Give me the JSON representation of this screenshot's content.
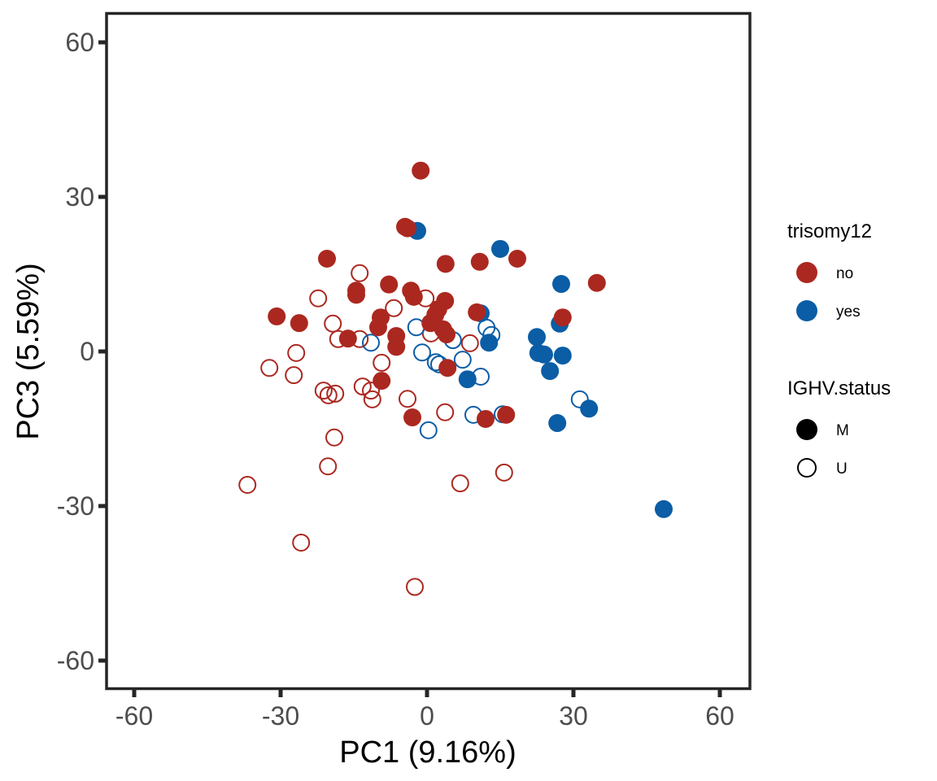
{
  "chart_data": {
    "type": "scatter",
    "title": "",
    "xlabel": "PC1 (9.16%)",
    "ylabel": "PC3 (5.59%)",
    "xlim": [
      -66,
      66
    ],
    "ylim": [
      -66,
      66
    ],
    "xticks": [
      -60,
      -30,
      0,
      30,
      60
    ],
    "yticks": [
      -60,
      -30,
      0,
      30,
      60
    ],
    "xtick_labels": [
      "-60",
      "-30",
      "0",
      "30",
      "60"
    ],
    "ytick_labels": [
      "-60",
      "-30",
      "0",
      "30",
      "60"
    ],
    "grid": false,
    "legend_placement": "right",
    "colors": {
      "no": "#ab2820",
      "yes": "#0b5da5",
      "axis": "#262626",
      "tick_text": "#4d4d4d"
    },
    "legends": [
      {
        "title": "trisomy12",
        "entries": [
          {
            "label": "no",
            "color": "#ab2820",
            "shape": "filled-circle"
          },
          {
            "label": "yes",
            "color": "#0b5da5",
            "shape": "filled-circle"
          }
        ]
      },
      {
        "title": "IGHV.status",
        "entries": [
          {
            "label": "M",
            "color": "#000000",
            "shape": "filled-circle"
          },
          {
            "label": "U",
            "color": "#000000",
            "shape": "open-circle"
          }
        ]
      }
    ],
    "series": [
      {
        "name": "trisomy12=no, IGHV.status=U",
        "trisomy12": "no",
        "IGHV.status": "U",
        "points": [
          [
            -13.8,
            15.2
          ],
          [
            -22.3,
            10.3
          ],
          [
            -6.8,
            8.4
          ],
          [
            -0.3,
            10.3
          ],
          [
            -19.3,
            5.4
          ],
          [
            -18.2,
            2.4
          ],
          [
            -13.8,
            2.4
          ],
          [
            -26.8,
            -0.3
          ],
          [
            -32.3,
            -3.2
          ],
          [
            -27.3,
            -4.6
          ],
          [
            -9.3,
            -2.2
          ],
          [
            -21.2,
            -7.6
          ],
          [
            -20.2,
            -8.5
          ],
          [
            -18.8,
            -8.2
          ],
          [
            -13.2,
            -6.8
          ],
          [
            -11.5,
            -7.6
          ],
          [
            -11.2,
            -9.3
          ],
          [
            -4.0,
            -9.2
          ],
          [
            3.7,
            -11.8
          ],
          [
            8.8,
            1.6
          ],
          [
            0.8,
            3.5
          ],
          [
            -19.0,
            -16.7
          ],
          [
            -20.3,
            -22.3
          ],
          [
            -36.8,
            -25.9
          ],
          [
            6.8,
            -25.6
          ],
          [
            15.8,
            -23.5
          ],
          [
            -25.8,
            -37.1
          ],
          [
            -2.5,
            -45.7
          ]
        ]
      },
      {
        "name": "trisomy12=yes, IGHV.status=U",
        "trisomy12": "yes",
        "IGHV.status": "U",
        "points": [
          [
            -2.2,
            4.7
          ],
          [
            -11.5,
            1.7
          ],
          [
            -1.0,
            -0.2
          ],
          [
            1.8,
            -2.1
          ],
          [
            2.5,
            -2.5
          ],
          [
            5.3,
            2.2
          ],
          [
            7.3,
            -1.6
          ],
          [
            12.2,
            4.6
          ],
          [
            13.2,
            3.2
          ],
          [
            11.0,
            -4.9
          ],
          [
            9.5,
            -12.3
          ],
          [
            15.5,
            -12.2
          ],
          [
            0.3,
            -15.3
          ],
          [
            31.3,
            -9.3
          ]
        ]
      },
      {
        "name": "trisomy12=yes, IGHV.status=M",
        "trisomy12": "yes",
        "IGHV.status": "M",
        "points": [
          [
            -2.0,
            23.4
          ],
          [
            15.0,
            19.9
          ],
          [
            27.5,
            13.1
          ],
          [
            11.0,
            7.4
          ],
          [
            27.2,
            5.4
          ],
          [
            22.5,
            2.8
          ],
          [
            12.7,
            1.7
          ],
          [
            22.8,
            -0.3
          ],
          [
            24.0,
            -0.6
          ],
          [
            27.8,
            -0.8
          ],
          [
            25.2,
            -3.8
          ],
          [
            8.3,
            -5.4
          ],
          [
            26.7,
            -13.9
          ],
          [
            33.2,
            -11.1
          ],
          [
            48.5,
            -30.6
          ]
        ]
      },
      {
        "name": "trisomy12=no, IGHV.status=M",
        "trisomy12": "no",
        "IGHV.status": "M",
        "points": [
          [
            -1.3,
            35.1
          ],
          [
            -4.5,
            24.2
          ],
          [
            -4.0,
            23.9
          ],
          [
            -20.5,
            18.0
          ],
          [
            3.8,
            17.0
          ],
          [
            10.8,
            17.4
          ],
          [
            18.5,
            18.0
          ],
          [
            34.8,
            13.3
          ],
          [
            -14.5,
            11.8
          ],
          [
            -14.5,
            11.0
          ],
          [
            -7.8,
            13.0
          ],
          [
            -3.3,
            11.8
          ],
          [
            -2.7,
            10.6
          ],
          [
            3.7,
            9.8
          ],
          [
            2.3,
            8.2
          ],
          [
            1.7,
            7.1
          ],
          [
            -30.8,
            6.8
          ],
          [
            -26.2,
            5.5
          ],
          [
            -9.5,
            6.6
          ],
          [
            -10.0,
            4.7
          ],
          [
            0.7,
            5.5
          ],
          [
            10.2,
            7.6
          ],
          [
            27.8,
            6.6
          ],
          [
            -16.2,
            2.5
          ],
          [
            -6.3,
            3.0
          ],
          [
            -6.3,
            0.9
          ],
          [
            3.3,
            4.3
          ],
          [
            4.0,
            3.3
          ],
          [
            4.2,
            -3.2
          ],
          [
            -9.3,
            -5.7
          ],
          [
            -3.0,
            -12.8
          ],
          [
            12.0,
            -13.1
          ],
          [
            16.2,
            -12.3
          ]
        ]
      }
    ]
  }
}
